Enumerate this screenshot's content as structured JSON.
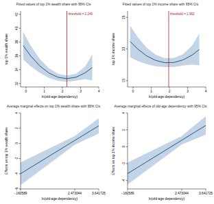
{
  "chart_data": [
    {
      "type": "line",
      "title": "Fitted values of top 1% wealth share with 95% CIs",
      "x_label": "ln(old-age dependency)",
      "y_label": "top 1% wealth share",
      "x": [
        -0.16,
        0.25,
        0.75,
        1.25,
        1.75,
        2.25,
        2.75,
        3.25,
        3.64
      ],
      "values": [
        37.5,
        36.0,
        34.56,
        33.52,
        32.9,
        32.7,
        32.91,
        33.54,
        34.31
      ],
      "ci_lower": [
        35.5,
        34.5,
        33.56,
        32.82,
        32.4,
        32.25,
        32.41,
        32.64,
        32.41
      ],
      "ci_upper": [
        39.5,
        37.5,
        35.56,
        34.22,
        33.4,
        33.15,
        33.41,
        34.44,
        36.21
      ],
      "color": "#1a476f",
      "xlim": [
        -0.3,
        4
      ],
      "xticks": [
        0,
        1,
        2,
        3,
        4
      ],
      "ylim": [
        31.5,
        42.5
      ],
      "yticks": [
        32,
        34,
        36,
        38,
        40,
        42
      ],
      "threshold": {
        "value": 2.246,
        "label": "threshold = 2.246"
      },
      "grid": false
    },
    {
      "type": "line",
      "title": "Fitted values of top 1% income share with 95% CIs",
      "x_label": "ln(old-age dependency)",
      "y_label": "top 1% income share",
      "x": [
        -0.16,
        0.25,
        0.75,
        1.25,
        1.75,
        2.25,
        2.75,
        3.25,
        3.64
      ],
      "values": [
        21.18,
        20.0,
        18.9,
        18.18,
        17.83,
        17.86,
        18.27,
        19.04,
        19.91
      ],
      "ci_lower": [
        18.68,
        18.1,
        17.6,
        17.28,
        17.13,
        17.16,
        17.37,
        17.54,
        17.41
      ],
      "ci_upper": [
        23.68,
        21.9,
        20.2,
        19.08,
        18.53,
        18.56,
        19.17,
        20.54,
        22.41
      ],
      "color": "#1a476f",
      "xlim": [
        -0.3,
        4
      ],
      "xticks": [
        0,
        1,
        2,
        3,
        4
      ],
      "ylim": [
        14,
        26
      ],
      "yticks": [
        15,
        20,
        25
      ],
      "threshold": {
        "value": 1.962,
        "label": "threshold = 1.962"
      },
      "grid": false
    },
    {
      "type": "line",
      "title": "Average marginal effects on top 1% wealth share with 95% CIs",
      "x_label": "ln(old-age dependency)",
      "y_label": "Effects on top 1% wealth share",
      "x": [
        -0.160589,
        2.473044,
        3.641725
      ],
      "values": [
        -3.99,
        0.38,
        2.31
      ],
      "ci_lower": [
        -5.5,
        -0.2,
        1.3
      ],
      "ci_upper": [
        -2.5,
        0.96,
        3.3
      ],
      "color": "#1a476f",
      "xlim": [
        -0.160589,
        3.641725
      ],
      "xticks": [
        {
          "value": -0.160589,
          "label": "-.160589"
        },
        2.473044,
        3.641725
      ],
      "ylim": [
        -6,
        4
      ],
      "yticks": [
        -6,
        -4,
        -2,
        0,
        2,
        4
      ],
      "grid": false
    },
    {
      "type": "line",
      "title": "Average marginal effects of old-age dependency with 95% CIs",
      "x_label": "ln(old-age dependency)",
      "y_label": "Effects on top 1% income share",
      "x": [
        -0.160589,
        2.473044,
        3.641725
      ],
      "values": [
        -3.18,
        0.77,
        2.52
      ],
      "ci_lower": [
        -4.48,
        0.27,
        1.42
      ],
      "ci_upper": [
        -1.88,
        1.27,
        3.62
      ],
      "color": "#1a476f",
      "xlim": [
        -0.160589,
        3.641725
      ],
      "xticks": [
        {
          "value": -0.160589,
          "label": "-.160589"
        },
        2.473044,
        3.641725
      ],
      "ylim": [
        -5,
        4
      ],
      "yticks": [
        -4,
        -2,
        0,
        2,
        4
      ],
      "grid": false
    }
  ]
}
